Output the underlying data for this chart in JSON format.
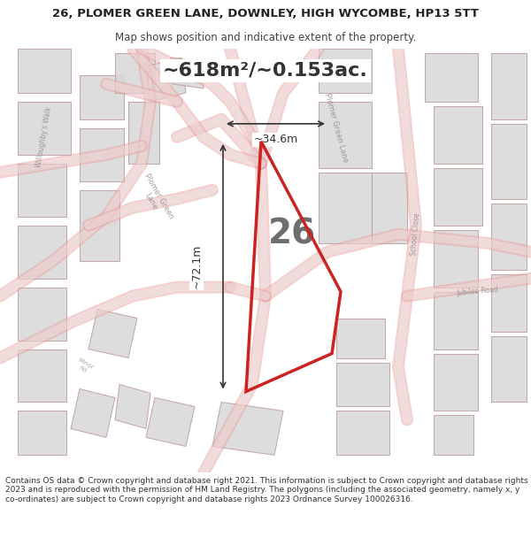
{
  "title_line1": "26, PLOMER GREEN LANE, DOWNLEY, HIGH WYCOMBE, HP13 5TT",
  "title_line2": "Map shows position and indicative extent of the property.",
  "area_label": "~618m²/~0.153ac.",
  "property_number": "26",
  "dim_vertical": "~72.1m",
  "dim_horizontal": "~34.6m",
  "footer_text": "Contains OS data © Crown copyright and database right 2021. This information is subject to Crown copyright and database rights 2023 and is reproduced with the permission of HM Land Registry. The polygons (including the associated geometry, namely x, y co-ordinates) are subject to Crown copyright and database rights 2023 Ordnance Survey 100026316.",
  "map_bg": "#f5f5f5",
  "road_color": "#e8a0a0",
  "building_color": "#d8d8d8",
  "building_edge": "#c0a0a0",
  "property_color": "#cc2222",
  "property_fill": "none",
  "dim_color": "#333333",
  "title_bg": "#ffffff",
  "footer_bg": "#ffffff"
}
